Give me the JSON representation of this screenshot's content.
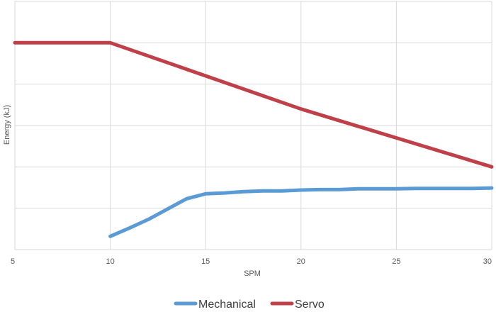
{
  "chart_data": {
    "type": "line",
    "title": "",
    "xlabel": "SPM",
    "ylabel": "Energy (kJ)",
    "xlim": [
      5,
      30
    ],
    "ylim": [
      0,
      6
    ],
    "x_ticks": [
      5,
      10,
      15,
      20,
      25,
      30
    ],
    "y_tick_labels_shown": false,
    "grid": true,
    "legend": "bottom-center",
    "series": [
      {
        "name": "Mechanical",
        "color": "#5b9bd5",
        "x": [
          10,
          11,
          12,
          13,
          14,
          15,
          16,
          17,
          18,
          19,
          20,
          21,
          22,
          23,
          24,
          25,
          26,
          27,
          28,
          29,
          30
        ],
        "y": [
          0.32,
          0.52,
          0.73,
          0.98,
          1.23,
          1.35,
          1.37,
          1.4,
          1.42,
          1.42,
          1.44,
          1.45,
          1.45,
          1.47,
          1.47,
          1.47,
          1.48,
          1.48,
          1.48,
          1.48,
          1.49
        ]
      },
      {
        "name": "Servo",
        "color": "#c0404a",
        "x": [
          5,
          10,
          15,
          20,
          25,
          30
        ],
        "y": [
          5.0,
          5.0,
          4.2,
          3.4,
          2.7,
          2.0
        ]
      }
    ]
  }
}
